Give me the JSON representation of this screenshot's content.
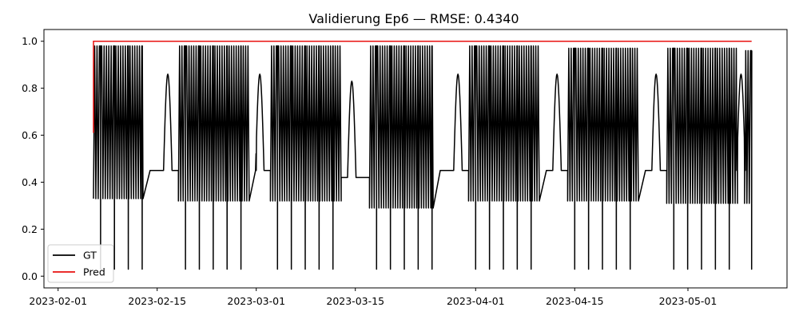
{
  "chart_data": {
    "type": "line",
    "title": "Validierung Ep6 — RMSE: 0.4340",
    "xlabel": "",
    "ylabel": "",
    "x_range": [
      "2023-01-30",
      "2023-05-15"
    ],
    "ylim": [
      -0.05,
      1.05
    ],
    "x_ticks": [
      "2023-02-01",
      "2023-02-15",
      "2023-03-01",
      "2023-03-15",
      "2023-04-01",
      "2023-04-15",
      "2023-05-01"
    ],
    "y_ticks": [
      "0.0",
      "0.2",
      "0.4",
      "0.6",
      "0.8",
      "1.0"
    ],
    "grid": false,
    "legend_position": "lower left",
    "series": [
      {
        "name": "GT",
        "color": "#000000",
        "note_style": "dense daily oscillation blocks with idle plateaus",
        "blocks": [
          {
            "start": "2023-02-06",
            "end": "2023-02-13",
            "low": 0.33,
            "high": 0.98
          },
          {
            "start": "2023-02-18",
            "end": "2023-02-28",
            "low": 0.32,
            "high": 0.98
          },
          {
            "start": "2023-03-03",
            "end": "2023-03-13",
            "low": 0.32,
            "high": 0.98
          },
          {
            "start": "2023-03-17",
            "end": "2023-03-26",
            "low": 0.29,
            "high": 0.98
          },
          {
            "start": "2023-03-31",
            "end": "2023-04-10",
            "low": 0.32,
            "high": 0.98
          },
          {
            "start": "2023-04-14",
            "end": "2023-04-24",
            "low": 0.32,
            "high": 0.97
          },
          {
            "start": "2023-04-28",
            "end": "2023-05-08",
            "low": 0.31,
            "high": 0.97
          },
          {
            "start": "2023-05-09",
            "end": "2023-05-10",
            "low": 0.31,
            "high": 0.96
          }
        ],
        "plateaus": [
          {
            "start": "2023-02-14",
            "end": "2023-02-18",
            "value": 0.45
          },
          {
            "start": "2023-03-01",
            "end": "2023-03-03",
            "value": 0.45
          },
          {
            "start": "2023-03-13",
            "end": "2023-03-17",
            "value": 0.42
          },
          {
            "start": "2023-03-27",
            "end": "2023-03-31",
            "value": 0.45
          },
          {
            "start": "2023-04-11",
            "end": "2023-04-14",
            "value": 0.45
          },
          {
            "start": "2023-04-25",
            "end": "2023-04-28",
            "value": 0.45
          },
          {
            "start": "2023-05-08",
            "end": "2023-05-09",
            "value": 0.45
          }
        ],
        "bumps": [
          {
            "date": "2023-02-16",
            "peak": 0.86
          },
          {
            "date": "2023-03-01",
            "peak": 0.86
          },
          {
            "date": "2023-03-14",
            "peak": 0.83
          },
          {
            "date": "2023-03-29",
            "peak": 0.86
          },
          {
            "date": "2023-04-12",
            "peak": 0.86
          },
          {
            "date": "2023-04-26",
            "peak": 0.86
          },
          {
            "date": "2023-05-08",
            "peak": 0.86
          }
        ]
      },
      {
        "name": "Pred",
        "color": "#e8110f",
        "x": [
          "2023-02-06",
          "2023-02-06",
          "2023-05-10"
        ],
        "y": [
          0.61,
          1.0,
          1.0
        ]
      }
    ]
  }
}
